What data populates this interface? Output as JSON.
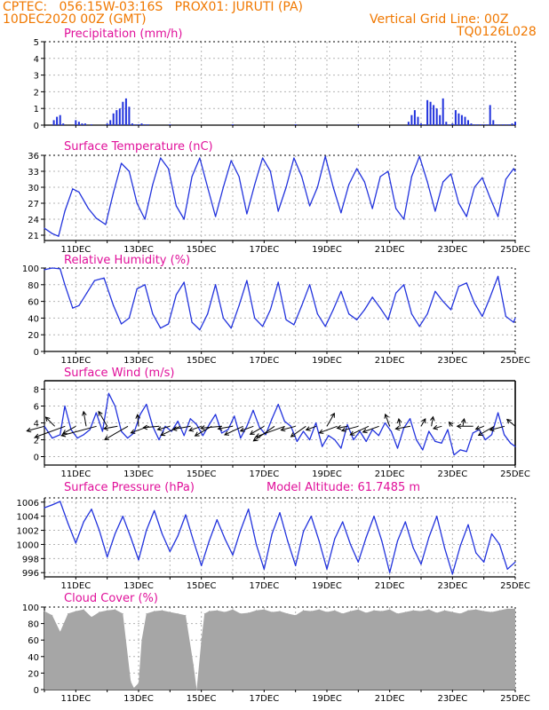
{
  "header": {
    "left_line1": "CPTEC:   056:15W-03:16S   PROX01: JURUTI (PA)",
    "left_line2": "10DEC2020 00Z (GMT)",
    "right_line1": "Vertical Grid Line: 00Z",
    "right_line2": "TQ0126L028"
  },
  "colors": {
    "header": "#f07800",
    "title": "#e0109a",
    "series": "#2233dd",
    "cloud": "#a6a6a6",
    "grid": "#b4b4b4"
  },
  "x_axis": {
    "labels": [
      "11DEC",
      "13DEC",
      "15DEC",
      "17DEC",
      "19DEC",
      "21DEC",
      "23DEC",
      "25DEC"
    ],
    "label_day_offsets": [
      1,
      3,
      5,
      7,
      9,
      11,
      13,
      15
    ],
    "range_days": [
      0,
      15
    ]
  },
  "chart_data": [
    {
      "id": "precip",
      "type": "bar",
      "title": "Precipitation (mm/h)",
      "ylim": [
        0,
        5
      ],
      "yticks": [
        0,
        1,
        2,
        3,
        4,
        5
      ],
      "x_unit": "days since 10DEC2020 00Z",
      "x": [
        0.3,
        0.4,
        0.5,
        0.6,
        0.7,
        0.8,
        0.9,
        1.0,
        1.1,
        1.2,
        1.3,
        1.5,
        2.0,
        2.1,
        2.2,
        2.3,
        2.4,
        2.5,
        2.6,
        2.7,
        2.8,
        2.9,
        3.0,
        3.1,
        3.2,
        3.3,
        4.0,
        6.0,
        8.0,
        10.0,
        11.6,
        11.7,
        11.8,
        11.9,
        12.0,
        12.1,
        12.2,
        12.3,
        12.4,
        12.5,
        12.6,
        12.7,
        12.8,
        12.9,
        13.0,
        13.1,
        13.2,
        13.3,
        13.4,
        13.5,
        13.6,
        13.7,
        13.8,
        13.9,
        14.0,
        14.1,
        14.2,
        14.3,
        14.4,
        14.5,
        14.6,
        14.7,
        14.8,
        14.9,
        15.0
      ],
      "values": [
        0.3,
        0.5,
        0.6,
        0.1,
        0,
        0,
        0,
        0.3,
        0.2,
        0.1,
        0.1,
        0.05,
        0.1,
        0.3,
        0.7,
        0.9,
        1.0,
        1.4,
        1.6,
        1.1,
        0.1,
        0.05,
        0.05,
        0.1,
        0.05,
        0.05,
        0.05,
        0.05,
        0.05,
        0.05,
        0.2,
        0.6,
        0.9,
        0.5,
        0.1,
        0.05,
        1.5,
        1.4,
        1.2,
        1.0,
        0.6,
        1.6,
        0.2,
        0.05,
        0.1,
        0.9,
        0.7,
        0.6,
        0.5,
        0.3,
        0.1,
        0.05,
        0.05,
        0.05,
        0.05,
        0.05,
        1.2,
        0.3,
        0.05,
        0.05,
        0.05,
        0.05,
        0.05,
        0.1,
        0.2
      ]
    },
    {
      "id": "temp",
      "type": "line",
      "title": "Surface Temperature (nC)",
      "ylim": [
        20,
        36
      ],
      "yticks": [
        21,
        24,
        27,
        30,
        33,
        36
      ],
      "x_unit": "days since 10DEC2020 00Z",
      "x": [
        0.0,
        0.25,
        0.45,
        0.65,
        0.9,
        1.1,
        1.4,
        1.65,
        1.95,
        2.2,
        2.45,
        2.7,
        2.95,
        3.2,
        3.45,
        3.7,
        3.95,
        4.2,
        4.45,
        4.7,
        4.95,
        5.2,
        5.45,
        5.7,
        5.95,
        6.2,
        6.45,
        6.7,
        6.95,
        7.2,
        7.45,
        7.7,
        7.95,
        8.2,
        8.45,
        8.7,
        8.95,
        9.2,
        9.45,
        9.7,
        9.95,
        10.2,
        10.45,
        10.7,
        10.95,
        11.2,
        11.45,
        11.7,
        11.95,
        12.2,
        12.45,
        12.7,
        12.95,
        13.2,
        13.45,
        13.7,
        13.95,
        14.2,
        14.45,
        14.7,
        14.95,
        15.0
      ],
      "values": [
        22.3,
        21.3,
        20.8,
        25.5,
        29.7,
        29.1,
        26.0,
        24.2,
        23.0,
        29.0,
        34.5,
        33.0,
        27.0,
        24.0,
        30.5,
        35.5,
        33.5,
        26.5,
        24.0,
        32.0,
        35.5,
        30.0,
        24.5,
        30.0,
        35.0,
        32.0,
        25.0,
        30.5,
        35.5,
        33.0,
        25.5,
        30.0,
        35.5,
        32.0,
        26.5,
        30.0,
        35.8,
        30.0,
        25.2,
        30.5,
        33.5,
        31.0,
        26.0,
        32.0,
        33.0,
        26.0,
        24.0,
        32.0,
        35.8,
        31.0,
        25.5,
        31.0,
        32.5,
        27.0,
        24.5,
        30.0,
        31.8,
        28.0,
        24.5,
        31.5,
        33.5,
        33.0
      ]
    },
    {
      "id": "rh",
      "type": "line",
      "title": "Relative Humidity (%)",
      "ylim": [
        0,
        100
      ],
      "yticks": [
        0,
        20,
        40,
        60,
        80,
        100
      ],
      "x_unit": "days since 10DEC2020 00Z",
      "x": [
        0.0,
        0.25,
        0.5,
        0.65,
        0.9,
        1.1,
        1.35,
        1.6,
        1.9,
        2.2,
        2.45,
        2.7,
        2.95,
        3.2,
        3.45,
        3.7,
        3.95,
        4.2,
        4.45,
        4.7,
        4.95,
        5.2,
        5.45,
        5.7,
        5.95,
        6.2,
        6.45,
        6.7,
        6.95,
        7.2,
        7.45,
        7.7,
        7.95,
        8.2,
        8.45,
        8.7,
        8.95,
        9.2,
        9.45,
        9.7,
        9.95,
        10.2,
        10.45,
        10.7,
        10.95,
        11.2,
        11.45,
        11.7,
        11.95,
        12.2,
        12.45,
        12.7,
        12.95,
        13.2,
        13.45,
        13.7,
        13.95,
        14.2,
        14.45,
        14.7,
        14.95,
        15.0
      ],
      "values": [
        98,
        100,
        99,
        80,
        52,
        55,
        70,
        85,
        88,
        55,
        33,
        40,
        75,
        80,
        45,
        28,
        33,
        68,
        83,
        35,
        26,
        45,
        80,
        40,
        28,
        55,
        85,
        40,
        30,
        50,
        83,
        38,
        32,
        55,
        80,
        45,
        30,
        50,
        72,
        45,
        38,
        50,
        65,
        52,
        38,
        70,
        80,
        45,
        30,
        45,
        72,
        60,
        50,
        78,
        82,
        58,
        42,
        65,
        90,
        42,
        35,
        40
      ]
    },
    {
      "id": "wind",
      "type": "line",
      "title": "Surface Wind (m/s)",
      "ylim": [
        -1,
        9
      ],
      "yticks": [
        0,
        2,
        4,
        6,
        8
      ],
      "x_unit": "days since 10DEC2020 00Z",
      "x": [
        0.0,
        0.25,
        0.5,
        0.65,
        0.85,
        1.05,
        1.25,
        1.45,
        1.65,
        1.85,
        2.05,
        2.25,
        2.45,
        2.65,
        2.85,
        3.05,
        3.25,
        3.45,
        3.65,
        3.85,
        4.05,
        4.25,
        4.45,
        4.65,
        4.85,
        5.05,
        5.25,
        5.45,
        5.65,
        5.85,
        6.05,
        6.25,
        6.45,
        6.65,
        6.85,
        7.05,
        7.25,
        7.45,
        7.65,
        7.85,
        8.05,
        8.25,
        8.45,
        8.65,
        8.85,
        9.05,
        9.25,
        9.45,
        9.65,
        9.85,
        10.05,
        10.25,
        10.45,
        10.65,
        10.85,
        11.05,
        11.25,
        11.45,
        11.65,
        11.85,
        12.05,
        12.25,
        12.45,
        12.65,
        12.85,
        13.05,
        13.25,
        13.45,
        13.65,
        13.85,
        14.05,
        14.25,
        14.45,
        14.65,
        14.85,
        15.0
      ],
      "values": [
        3.6,
        2.2,
        2.6,
        6.0,
        3.2,
        2.2,
        2.6,
        3.2,
        5.2,
        3.0,
        7.5,
        6.0,
        3.0,
        2.2,
        2.8,
        5.0,
        6.2,
        3.6,
        2.0,
        3.6,
        3.0,
        4.2,
        2.5,
        4.5,
        3.8,
        2.5,
        3.8,
        5.0,
        2.8,
        3.2,
        4.8,
        2.2,
        3.6,
        5.5,
        3.5,
        2.6,
        4.5,
        6.2,
        4.2,
        3.6,
        1.8,
        3.0,
        2.0,
        4.0,
        1.2,
        2.5,
        2.0,
        1.0,
        3.8,
        2.0,
        3.0,
        1.8,
        3.2,
        2.5,
        4.0,
        3.0,
        1.0,
        3.4,
        4.5,
        2.0,
        0.8,
        3.0,
        1.8,
        1.6,
        3.2,
        0.2,
        0.8,
        0.6,
        2.8,
        3.2,
        2.0,
        2.6,
        5.2,
        2.6,
        1.6,
        1.2
      ]
    },
    {
      "id": "pressure",
      "type": "line",
      "title": "Surface Pressure (hPa)",
      "subtitle": "Model Altitude: 61.7485 m",
      "ylim": [
        995.4,
        1006.6
      ],
      "yticks": [
        996,
        998,
        1000,
        1002,
        1004,
        1006
      ],
      "x_unit": "days since 10DEC2020 00Z",
      "x": [
        0.0,
        0.25,
        0.5,
        0.75,
        1.0,
        1.25,
        1.5,
        1.75,
        2.0,
        2.25,
        2.5,
        2.75,
        3.0,
        3.25,
        3.5,
        3.75,
        4.0,
        4.25,
        4.5,
        4.75,
        5.0,
        5.25,
        5.5,
        5.75,
        6.0,
        6.25,
        6.5,
        6.75,
        7.0,
        7.25,
        7.5,
        7.75,
        8.0,
        8.25,
        8.5,
        8.75,
        9.0,
        9.25,
        9.5,
        9.75,
        10.0,
        10.25,
        10.5,
        10.75,
        11.0,
        11.25,
        11.5,
        11.75,
        12.0,
        12.25,
        12.5,
        12.75,
        13.0,
        13.25,
        13.5,
        13.75,
        14.0,
        14.25,
        14.5,
        14.75,
        15.0
      ],
      "values": [
        1005.2,
        1005.6,
        1006.1,
        1003.0,
        1000.2,
        1003.2,
        1005.0,
        1002.0,
        998.2,
        1001.5,
        1004.0,
        1001.0,
        997.8,
        1002.0,
        1004.8,
        1001.5,
        999.0,
        1001.2,
        1004.2,
        1000.5,
        997.0,
        1000.5,
        1003.5,
        1000.8,
        998.5,
        1002.0,
        1005.0,
        1000.0,
        996.5,
        1001.5,
        1004.5,
        1000.5,
        997.0,
        1001.8,
        1004.0,
        1000.5,
        996.5,
        1000.8,
        1003.2,
        1000.0,
        997.5,
        1001.0,
        1004.0,
        1000.5,
        996.0,
        1000.5,
        1003.2,
        999.5,
        997.2,
        1001.0,
        1004.0,
        999.5,
        995.8,
        999.8,
        1002.8,
        998.8,
        997.5,
        1001.5,
        1000.0,
        996.5,
        997.5
      ]
    },
    {
      "id": "cloud",
      "type": "bar",
      "title": "Cloud Cover (%)",
      "ylim": [
        0,
        100
      ],
      "yticks": [
        0,
        20,
        40,
        60,
        80,
        100
      ],
      "x_unit": "days since 10DEC2020 00Z",
      "x": [
        0.0,
        0.25,
        0.5,
        0.75,
        1.0,
        1.25,
        1.5,
        1.75,
        2.0,
        2.25,
        2.5,
        2.75,
        2.85,
        3.0,
        3.1,
        3.25,
        3.5,
        3.75,
        4.0,
        4.25,
        4.5,
        4.75,
        4.85,
        5.0,
        5.1,
        5.25,
        5.5,
        5.75,
        6.0,
        6.25,
        6.5,
        6.75,
        7.0,
        7.25,
        7.5,
        7.75,
        8.0,
        8.25,
        8.5,
        8.75,
        9.0,
        9.25,
        9.5,
        9.75,
        10.0,
        10.25,
        10.5,
        10.75,
        11.0,
        11.25,
        11.5,
        11.75,
        12.0,
        12.25,
        12.5,
        12.75,
        13.0,
        13.25,
        13.5,
        13.75,
        14.0,
        14.25,
        14.5,
        14.75
      ],
      "values": [
        95,
        90,
        70,
        92,
        95,
        97,
        88,
        94,
        96,
        97,
        92,
        10,
        2,
        8,
        60,
        92,
        95,
        96,
        94,
        92,
        90,
        30,
        0,
        60,
        92,
        95,
        96,
        94,
        97,
        92,
        93,
        96,
        97,
        94,
        95,
        92,
        90,
        96,
        95,
        97,
        94,
        96,
        92,
        95,
        97,
        93,
        96,
        95,
        97,
        92,
        94,
        96,
        95,
        97,
        93,
        96,
        94,
        92,
        96,
        97,
        95,
        94,
        96,
        98
      ]
    },
    {
      "id": "wind_vectors",
      "type": "scatter",
      "title": "",
      "x_unit": "days since 10DEC2020 00Z",
      "x": [
        0.0,
        0.33,
        0.66,
        1.0,
        1.33,
        1.66,
        2.0,
        2.33,
        2.66,
        3.0,
        3.33,
        3.66,
        4.0,
        4.33,
        4.66,
        5.0,
        5.33,
        5.66,
        6.0,
        6.33,
        6.66,
        7.0,
        7.33,
        7.66,
        8.0,
        8.33,
        8.66,
        9.0,
        9.33,
        9.66,
        10.0,
        10.33,
        10.66,
        11.0,
        11.33,
        11.66,
        12.0,
        12.33,
        12.66,
        13.0,
        13.33,
        13.66,
        14.0,
        14.33,
        14.66,
        15.0
      ],
      "speed": [
        3.4,
        2.4,
        6.0,
        2.8,
        2.8,
        6.8,
        3.2,
        2.6,
        5.0,
        2.2,
        3.6,
        3.0,
        2.4,
        4.0,
        3.4,
        2.4,
        3.6,
        4.0,
        2.8,
        3.8,
        2.6,
        3.0,
        4.8,
        5.8,
        2.8,
        3.4,
        2.0,
        2.8,
        3.6,
        2.0,
        3.2,
        3.8,
        3.2,
        2.4,
        1.4,
        2.8,
        1.6,
        1.8,
        1.6,
        1.0,
        1.4,
        3.0,
        1.6,
        3.4,
        2.8,
        2.0
      ],
      "direction_deg": [
        195,
        135,
        200,
        210,
        100,
        195,
        120,
        190,
        210,
        95,
        200,
        185,
        195,
        205,
        190,
        200,
        210,
        185,
        190,
        205,
        200,
        210,
        215,
        200,
        195,
        215,
        200,
        60,
        200,
        190,
        195,
        205,
        200,
        110,
        100,
        190,
        60,
        80,
        195,
        130,
        80,
        180,
        200,
        210,
        195,
        140
      ]
    }
  ]
}
